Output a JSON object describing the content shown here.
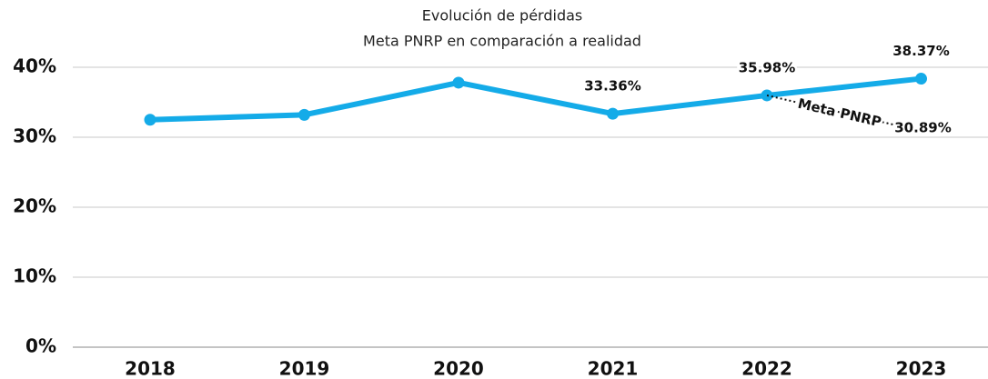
{
  "chart_data": {
    "type": "line",
    "title": "Evolución de pérdidas",
    "subtitle": "Meta PNRP en comparación a realidad",
    "categories": [
      "2018",
      "2019",
      "2020",
      "2021",
      "2022",
      "2023"
    ],
    "series": [
      {
        "name": null,
        "color": "#14abe8",
        "values": [
          32.5,
          33.2,
          37.8,
          33.36,
          35.98,
          38.37
        ],
        "value_labels": [
          null,
          null,
          null,
          "33.36%",
          "35.98%",
          "38.37%"
        ]
      },
      {
        "name": "Meta PNRP",
        "color": "#111111",
        "values": [
          null,
          null,
          null,
          null,
          35.98,
          30.89
        ],
        "value_labels": [
          null,
          null,
          null,
          null,
          null,
          "30.89%"
        ]
      }
    ],
    "ylim": [
      0,
      40
    ],
    "yticks": [
      {
        "value": 0,
        "label": "0%"
      },
      {
        "value": 10,
        "label": "10%"
      },
      {
        "value": 20,
        "label": "20%"
      },
      {
        "value": 30,
        "label": "30%"
      },
      {
        "value": 40,
        "label": "40%"
      }
    ],
    "grid": true
  }
}
